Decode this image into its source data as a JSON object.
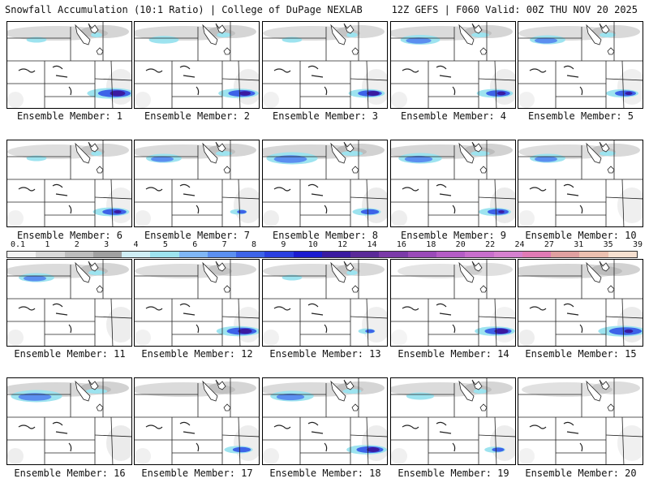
{
  "header": {
    "title": "Snowfall Accumulation (10:1 Ratio) | College of DuPage NEXLAB",
    "run_info": "12Z GEFS | F060 Valid: 00Z THU NOV 20 2025"
  },
  "colorbar": {
    "labels": [
      "0.1",
      "1",
      "2",
      "3",
      "4",
      "5",
      "6",
      "7",
      "8",
      "9",
      "10",
      "12",
      "14",
      "16",
      "18",
      "20",
      "22",
      "24",
      "27",
      "31",
      "35",
      "39"
    ],
    "colors": [
      "#f4f4f4",
      "#d9d9d9",
      "#bdbdbd",
      "#a0a0a0",
      "#cfeef5",
      "#9de3ef",
      "#7fb6f5",
      "#5b8ff0",
      "#3d63e8",
      "#2a3fe0",
      "#1b1bd0",
      "#3a1aa0",
      "#5a2a98",
      "#7b3aa8",
      "#9a4ab8",
      "#b45cc5",
      "#c86ecc",
      "#d680cf",
      "#e07ab4",
      "#e0a0a0",
      "#ecc0b0",
      "#f6e0d0"
    ]
  },
  "members": [
    {
      "label": "Ensemble Member: 1",
      "band": 0.6,
      "blue_top": 0.1,
      "blue_bottom": 0.9,
      "purple": 0.8
    },
    {
      "label": "Ensemble Member: 2",
      "band": 0.6,
      "blue_top": 0.35,
      "blue_bottom": 0.7,
      "purple": 0.5
    },
    {
      "label": "Ensemble Member: 3",
      "band": 0.5,
      "blue_top": 0.1,
      "blue_bottom": 0.6,
      "purple": 0.6
    },
    {
      "label": "Ensemble Member: 4",
      "band": 0.6,
      "blue_top": 0.6,
      "blue_bottom": 0.6,
      "purple": 0.3
    },
    {
      "label": "Ensemble Member: 5",
      "band": 0.5,
      "blue_top": 0.5,
      "blue_bottom": 0.5,
      "purple": 0.2
    },
    {
      "label": "Ensemble Member: 6",
      "band": 0.5,
      "blue_top": 0.1,
      "blue_bottom": 0.6,
      "purple": 0.2
    },
    {
      "label": "Ensemble Member: 7",
      "band": 0.6,
      "blue_top": 0.5,
      "blue_bottom": 0.1,
      "purple": 0.0
    },
    {
      "label": "Ensemble Member: 8",
      "band": 0.7,
      "blue_top": 0.9,
      "blue_bottom": 0.4,
      "purple": 0.0
    },
    {
      "label": "Ensemble Member: 9",
      "band": 0.7,
      "blue_top": 0.7,
      "blue_bottom": 0.5,
      "purple": 0.1
    },
    {
      "label": "Ensemble Member: 10",
      "band": 0.5,
      "blue_top": 0.5,
      "blue_bottom": 0.0,
      "purple": 0.0
    },
    {
      "label": "Ensemble Member: 11",
      "band": 0.6,
      "blue_top": 0.5,
      "blue_bottom": 0.0,
      "purple": 0.0
    },
    {
      "label": "Ensemble Member: 12",
      "band": 0.5,
      "blue_top": 0.0,
      "blue_bottom": 0.8,
      "purple": 0.7
    },
    {
      "label": "Ensemble Member: 13",
      "band": 0.5,
      "blue_top": 0.1,
      "blue_bottom": 0.1,
      "purple": 0.0
    },
    {
      "label": "Ensemble Member: 14",
      "band": 0.3,
      "blue_top": 0.0,
      "blue_bottom": 0.7,
      "purple": 0.7
    },
    {
      "label": "Ensemble Member: 15",
      "band": 0.7,
      "blue_top": 0.0,
      "blue_bottom": 0.9,
      "purple": 0.3
    },
    {
      "label": "Ensemble Member: 16",
      "band": 0.7,
      "blue_top": 0.9,
      "blue_bottom": 0.0,
      "purple": 0.0
    },
    {
      "label": "Ensemble Member: 17",
      "band": 0.6,
      "blue_top": 0.0,
      "blue_bottom": 0.4,
      "purple": 0.0
    },
    {
      "label": "Ensemble Member: 18",
      "band": 0.6,
      "blue_top": 0.7,
      "blue_bottom": 0.7,
      "purple": 0.6
    },
    {
      "label": "Ensemble Member: 19",
      "band": 0.6,
      "blue_top": 0.3,
      "blue_bottom": 0.2,
      "purple": 0.0
    },
    {
      "label": "Ensemble Member: 20",
      "band": 0.4,
      "blue_top": 0.0,
      "blue_bottom": 0.0,
      "purple": 0.0
    }
  ]
}
